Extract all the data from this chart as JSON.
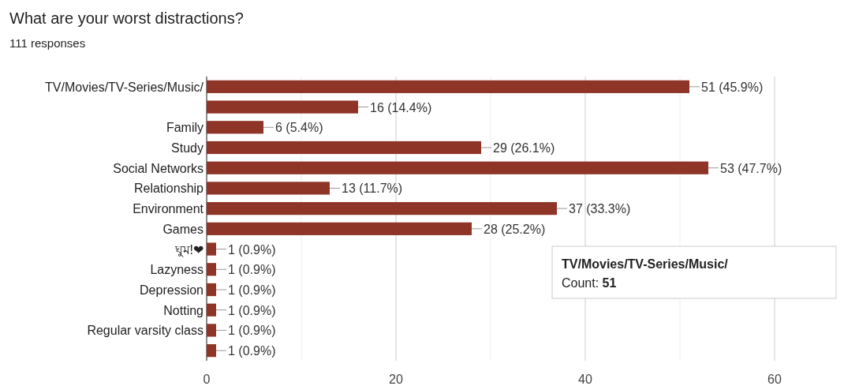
{
  "chart_data": {
    "type": "bar",
    "orientation": "horizontal",
    "title": "What are your worst distractions?",
    "subtitle": "111 responses",
    "categories": [
      "TV/Movies/TV-Series/Music/",
      null,
      "Family",
      "Study",
      "Social Networks",
      "Relationship",
      "Environment",
      "Games",
      "ঘুম!❤",
      "Lazyness",
      "Depression",
      "Notting",
      "Regular varsity class",
      null
    ],
    "values": [
      51,
      16,
      6,
      29,
      53,
      13,
      37,
      28,
      1,
      1,
      1,
      1,
      1,
      1
    ],
    "value_labels": [
      "51 (45.9%)",
      "16 (14.4%)",
      "6 (5.4%)",
      "29 (26.1%)",
      "53 (47.7%)",
      "13 (11.7%)",
      "37 (33.3%)",
      "28 (25.2%)",
      "1 (0.9%)",
      "1 (0.9%)",
      "1 (0.9%)",
      "1 (0.9%)",
      "1 (0.9%)",
      "1 (0.9%)"
    ],
    "color": "#8f3527",
    "xlim": [
      0,
      60
    ],
    "xticks": [
      0,
      {
        "value": 10,
        "label": null
      },
      20,
      {
        "value": 30,
        "label": null
      },
      40,
      {
        "value": 50,
        "label": null
      },
      60
    ],
    "grid": "x",
    "annotations": [
      "TV/Movies/TV-Series/Music/",
      "Count: **51**"
    ]
  }
}
